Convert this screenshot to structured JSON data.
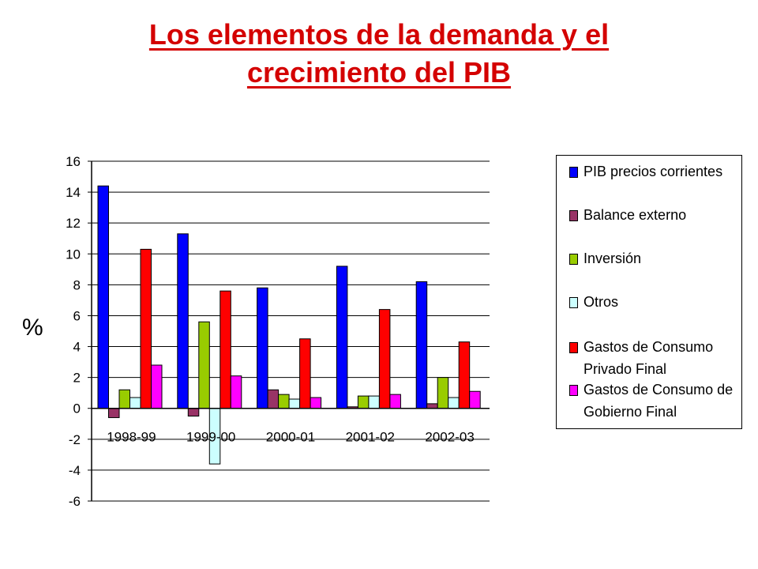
{
  "title_lines": [
    "Los elementos de la demanda y el",
    "crecimiento del PIB"
  ],
  "chart_data": {
    "type": "bar",
    "title": "Los elementos de la demanda y el crecimiento del PIB",
    "ylabel": "%",
    "xlabel": "",
    "categories": [
      "1998-99",
      "1999-00",
      "2000-01",
      "2001-02",
      "2002-03"
    ],
    "ylim": [
      -6,
      16
    ],
    "yticks": [
      16,
      14,
      12,
      10,
      8,
      6,
      4,
      2,
      0,
      -2,
      -4,
      -6
    ],
    "grid": true,
    "legend_position": "right",
    "series": [
      {
        "name": "PIB precios corrientes",
        "color": "#0000ff",
        "values": [
          14.4,
          11.3,
          7.8,
          9.2,
          8.2
        ]
      },
      {
        "name": "Balance externo",
        "color": "#993366",
        "values": [
          -0.6,
          -0.5,
          1.2,
          0.1,
          0.3
        ]
      },
      {
        "name": "Inversión",
        "color": "#99cc00",
        "values": [
          1.2,
          5.6,
          0.9,
          0.8,
          2.0
        ]
      },
      {
        "name": "Otros",
        "color": "#ccffff",
        "values": [
          0.7,
          -3.6,
          0.6,
          0.8,
          0.7
        ]
      },
      {
        "name": "Gastos de Consumo Privado Final",
        "color": "#ff0000",
        "values": [
          10.3,
          7.6,
          4.5,
          6.4,
          4.3
        ]
      },
      {
        "name": "Gastos de Consumo de Gobierno Final",
        "color": "#ff00ff",
        "values": [
          2.8,
          2.1,
          0.7,
          0.9,
          1.1
        ]
      }
    ]
  },
  "legend": [
    {
      "lines": [
        "PIB precios corrientes"
      ],
      "color": "#0000ff"
    },
    {
      "lines": [
        "Balance externo"
      ],
      "color": "#993366"
    },
    {
      "lines": [
        "Inversión"
      ],
      "color": "#99cc00"
    },
    {
      "lines": [
        "Otros"
      ],
      "color": "#ccffff"
    },
    {
      "lines": [
        "Gastos de Consumo",
        "Privado Final"
      ],
      "color": "#ff0000"
    },
    {
      "lines": [
        "Gastos de Consumo de",
        "Gobierno Final"
      ],
      "color": "#ff00ff"
    }
  ]
}
